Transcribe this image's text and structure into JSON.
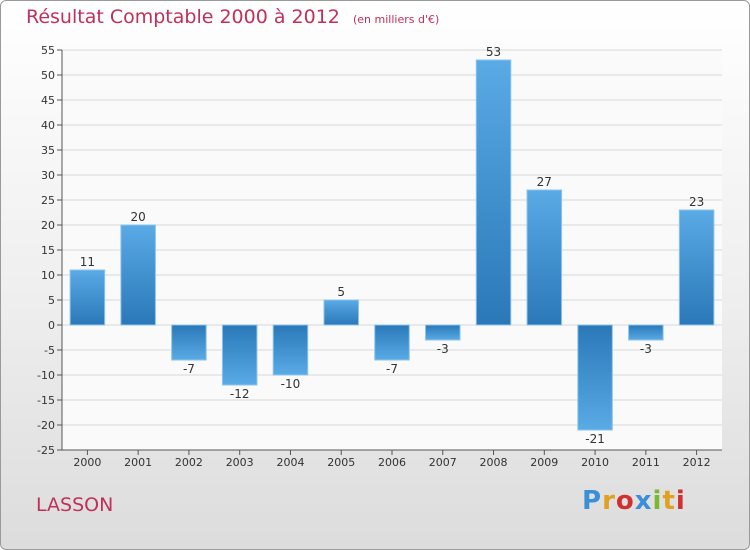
{
  "title": "Résultat Comptable 2000 à 2012",
  "subtitle": "(en milliers d'€)",
  "place": "LASSON",
  "logo": "Proxiti",
  "colors": {
    "title": "#c0305a",
    "bar_light": "#5aaae6",
    "bar_dark": "#2a78b8",
    "grid": "#d8d8d8",
    "axis": "#555555"
  },
  "chart_data": {
    "type": "bar",
    "categories": [
      "2000",
      "2001",
      "2002",
      "2003",
      "2004",
      "2005",
      "2006",
      "2007",
      "2008",
      "2009",
      "2010",
      "2011",
      "2012"
    ],
    "values": [
      11,
      20,
      -7,
      -12,
      -10,
      5,
      -7,
      -3,
      53,
      27,
      -21,
      -3,
      23
    ],
    "title": "Résultat Comptable 2000 à 2012",
    "subtitle": "(en milliers d'€)",
    "ylim": [
      -25,
      55
    ],
    "yticks": [
      -25,
      -20,
      -15,
      -10,
      -5,
      0,
      5,
      10,
      15,
      20,
      25,
      30,
      35,
      40,
      45,
      50,
      55
    ],
    "grid": true,
    "legend": "none"
  }
}
